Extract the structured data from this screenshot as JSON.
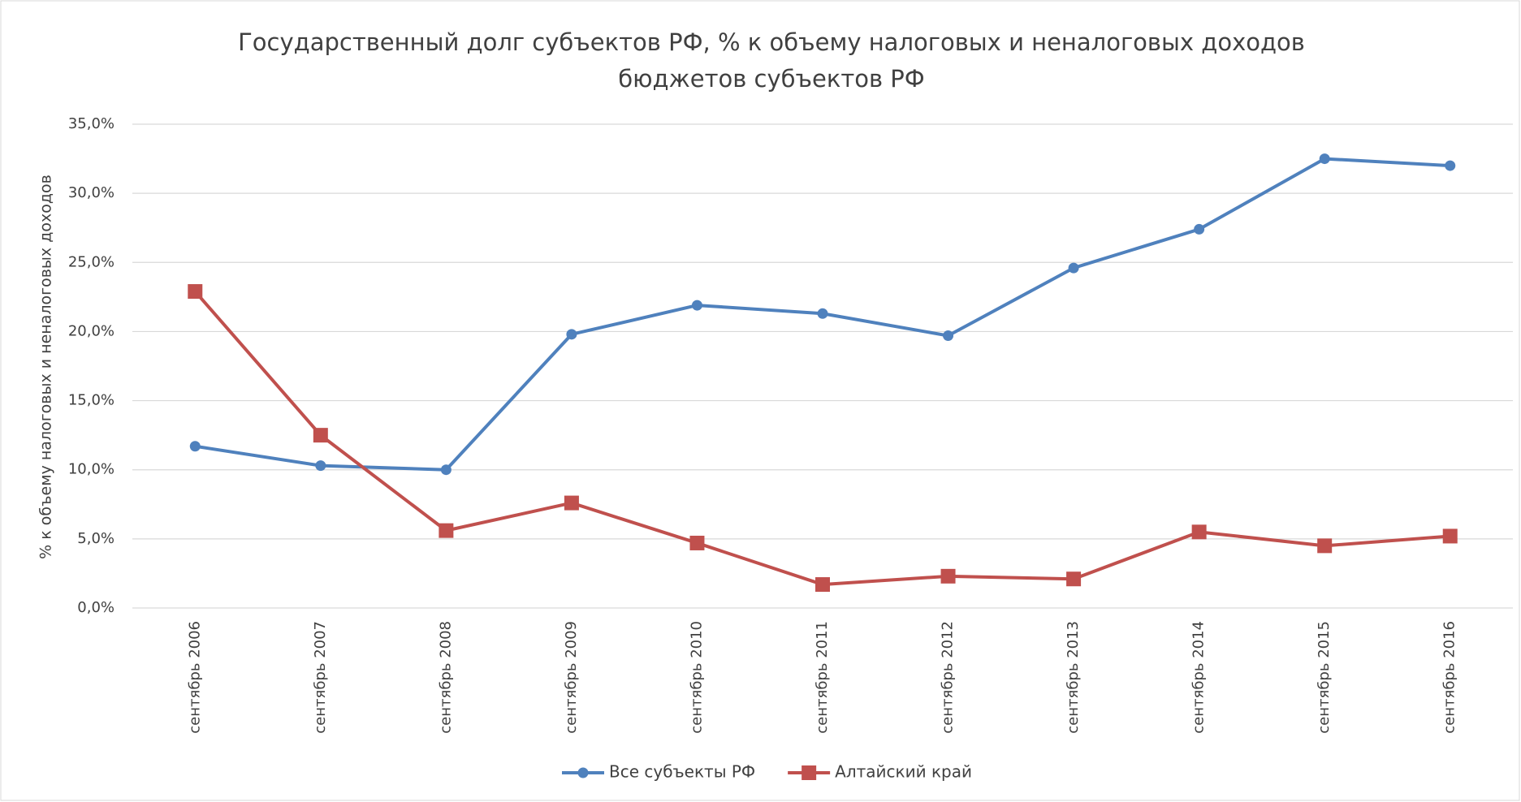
{
  "chart_data": {
    "type": "line",
    "title": [
      "Государственный  долг субъектов РФ, % к объему налоговых и неналоговых доходов",
      "бюджетов субъектов РФ"
    ],
    "y_label": "% к объему налоговых и неналоговых доходов",
    "categories": [
      "сентябрь 2006",
      "сентябрь 2007",
      "сентябрь 2008",
      "сентябрь 2009",
      "сентябрь 2010",
      "сентябрь 2011",
      "сентябрь 2012",
      "сентябрь 2013",
      "сентябрь 2014",
      "сентябрь 2015",
      "сентябрь 2016"
    ],
    "series": [
      {
        "name": "Все субъекты РФ",
        "color": "#4f81bd",
        "marker": "circle",
        "values": [
          11.7,
          10.3,
          10.0,
          19.8,
          21.9,
          21.3,
          19.7,
          24.6,
          27.4,
          32.5,
          32.0
        ]
      },
      {
        "name": "Алтайский край",
        "color": "#c0504d",
        "marker": "square",
        "values": [
          22.9,
          12.5,
          5.6,
          7.6,
          4.7,
          1.7,
          2.3,
          2.1,
          5.5,
          4.5,
          5.2
        ]
      }
    ],
    "ylim": [
      0,
      35
    ],
    "yticks": [
      {
        "value": 0,
        "label": "0,0%"
      },
      {
        "value": 5,
        "label": "5,0%"
      },
      {
        "value": 10,
        "label": "10,0%"
      },
      {
        "value": 15,
        "label": "15,0%"
      },
      {
        "value": 20,
        "label": "20,0%"
      },
      {
        "value": 25,
        "label": "25,0%"
      },
      {
        "value": 30,
        "label": "30,0%"
      },
      {
        "value": 35,
        "label": "35,0%"
      }
    ],
    "grid": true,
    "legend": "bottom"
  }
}
